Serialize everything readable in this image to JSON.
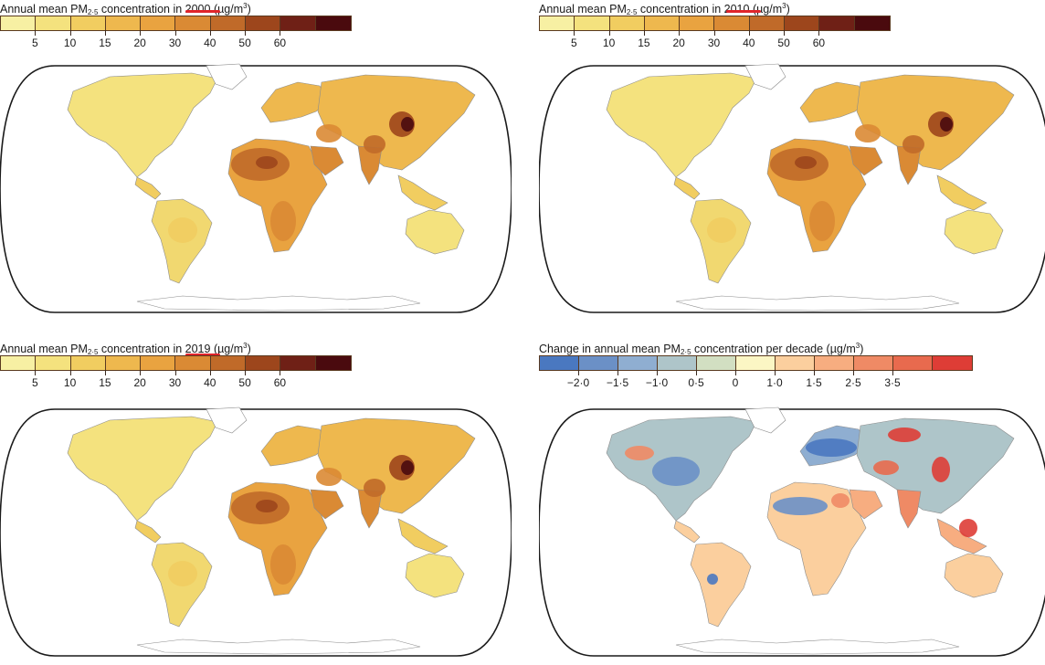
{
  "panels": [
    {
      "title_prefix": "Annual mean PM",
      "title_sub": "2·5",
      "title_mid": " concentration in ",
      "title_year": "2000",
      "title_unit_open": " (µg/m",
      "title_unit_sup": "3",
      "title_unit_close": ")",
      "legend_ticks": [
        "5",
        "10",
        "15",
        "20",
        "30",
        "40",
        "50",
        "60"
      ]
    },
    {
      "title_prefix": "Annual mean PM",
      "title_sub": "2·5",
      "title_mid": " concentration in ",
      "title_year": "2010",
      "title_unit_open": " (µg/m",
      "title_unit_sup": "3",
      "title_unit_close": ")",
      "legend_ticks": [
        "5",
        "10",
        "15",
        "20",
        "30",
        "40",
        "50",
        "60"
      ]
    },
    {
      "title_prefix": "Annual mean PM",
      "title_sub": "2·5",
      "title_mid": " concentration in ",
      "title_year": "2019",
      "title_unit_open": " (µg/m",
      "title_unit_sup": "3",
      "title_unit_close": ")",
      "legend_ticks": [
        "5",
        "10",
        "15",
        "20",
        "30",
        "40",
        "50",
        "60"
      ]
    },
    {
      "title_prefix": "Change in annual mean PM",
      "title_sub": "2·5",
      "title_mid": " concentration per decade",
      "title_year": "",
      "title_unit_open": " (µg/m",
      "title_unit_sup": "3",
      "title_unit_close": ")",
      "legend_ticks": [
        "−2·0",
        "−1·5",
        "−1·0",
        "0·5",
        "0",
        "1·0",
        "1·5",
        "2·5",
        "3·5"
      ]
    }
  ],
  "colors": {
    "concentration_scale": [
      "#f7f0a3",
      "#f4e27e",
      "#f1cd60",
      "#eeb84e",
      "#e9a340",
      "#da8a34",
      "#c06a29",
      "#9d461c",
      "#6f2016",
      "#4a0a0e"
    ],
    "change_scale": [
      "#4a78c0",
      "#6b90c6",
      "#8faed1",
      "#aec5c9",
      "#d2dfc2",
      "#fbf6c4",
      "#fbcf9e",
      "#f7ad80",
      "#ef8a65",
      "#e86a4e",
      "#de3d36"
    ],
    "highlight": "#e0242b"
  }
}
